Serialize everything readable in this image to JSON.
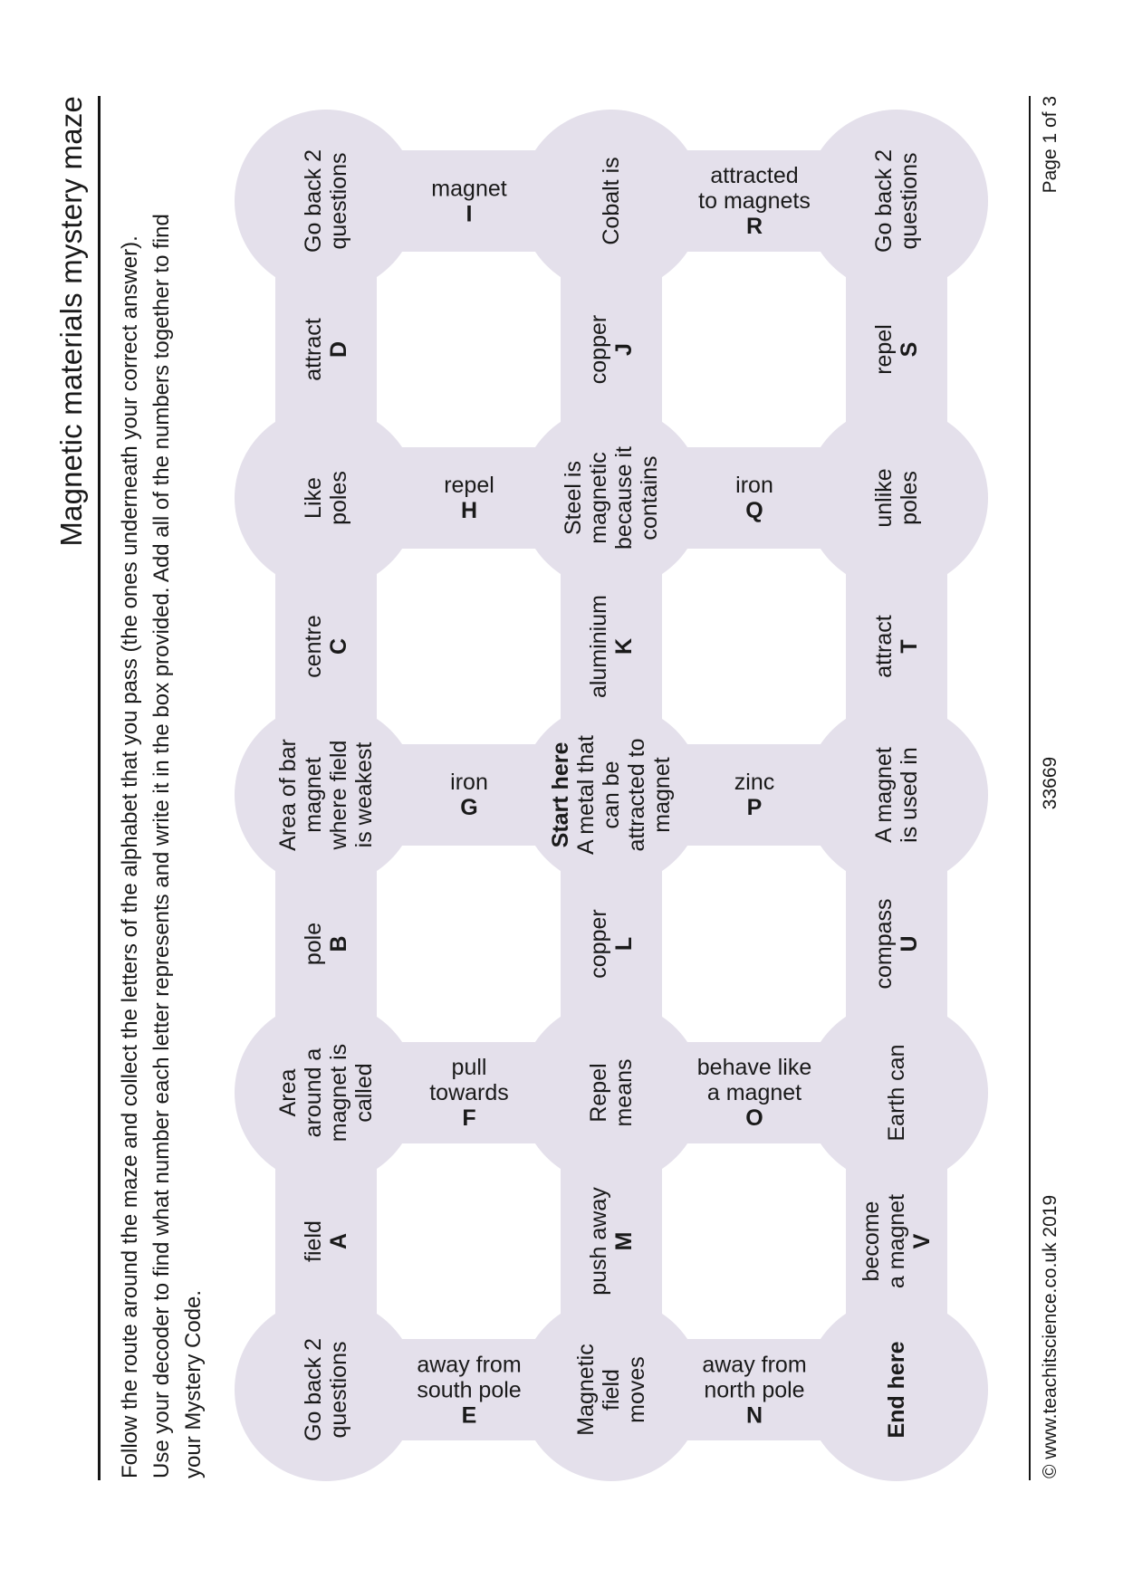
{
  "document": {
    "title": "Magnetic materials mystery maze",
    "instruction_lines": [
      "Follow the route around the maze and collect the letters of the alphabet that you pass (the ones underneath your correct answer).",
      "Use your decoder to find what number each letter represents and write it in the box provided. Add all of the numbers together to find",
      "your Mystery Code."
    ],
    "footer": {
      "copyright": "© www.teachitscience.co.uk 2019",
      "document_id": "33669",
      "page_label": "Page 1 of 3"
    }
  },
  "colors": {
    "bubble": "#e4e0eb",
    "ink": "#1a1a1a",
    "rule": "#161616"
  },
  "maze": {
    "circles": [
      {
        "row": 0,
        "col": 0,
        "lines": [
          "Go back 2",
          "questions"
        ]
      },
      {
        "row": 0,
        "col": 1,
        "lines": [
          "Area",
          "around a",
          "magnet is",
          "called"
        ]
      },
      {
        "row": 0,
        "col": 2,
        "lines": [
          "Area of bar",
          "magnet",
          "where field",
          "is weakest"
        ]
      },
      {
        "row": 0,
        "col": 3,
        "lines": [
          "Like",
          "poles"
        ]
      },
      {
        "row": 0,
        "col": 4,
        "lines": [
          "Go back 2",
          "questions"
        ]
      },
      {
        "row": 1,
        "col": 0,
        "lines": [
          "Magnetic",
          "field",
          "moves"
        ]
      },
      {
        "row": 1,
        "col": 1,
        "lines": [
          "Repel",
          "means"
        ]
      },
      {
        "row": 1,
        "col": 2,
        "lines": [
          "Start here",
          "A metal that",
          "can be",
          "attracted to",
          "magnet"
        ],
        "bold_first": true
      },
      {
        "row": 1,
        "col": 3,
        "lines": [
          "Steel is",
          "magnetic",
          "because it",
          "contains"
        ]
      },
      {
        "row": 1,
        "col": 4,
        "lines": [
          "Cobalt is"
        ]
      },
      {
        "row": 2,
        "col": 0,
        "lines": [
          "End here"
        ],
        "bold_first": true
      },
      {
        "row": 2,
        "col": 1,
        "lines": [
          "Earth can"
        ]
      },
      {
        "row": 2,
        "col": 2,
        "lines": [
          "A magnet",
          "is used in"
        ]
      },
      {
        "row": 2,
        "col": 3,
        "lines": [
          "unlike",
          "poles"
        ]
      },
      {
        "row": 2,
        "col": 4,
        "lines": [
          "Go back 2",
          "questions"
        ]
      }
    ],
    "horizontal_connectors": [
      {
        "row": 0,
        "cols": [
          0,
          1
        ],
        "answer_lines": [
          "field"
        ],
        "letter": "A"
      },
      {
        "row": 0,
        "cols": [
          1,
          2
        ],
        "answer_lines": [
          "pole"
        ],
        "letter": "B"
      },
      {
        "row": 0,
        "cols": [
          2,
          3
        ],
        "answer_lines": [
          "centre"
        ],
        "letter": "C"
      },
      {
        "row": 0,
        "cols": [
          3,
          4
        ],
        "answer_lines": [
          "attract"
        ],
        "letter": "D"
      },
      {
        "row": 1,
        "cols": [
          0,
          1
        ],
        "answer_lines": [
          "push away"
        ],
        "letter": "M"
      },
      {
        "row": 1,
        "cols": [
          1,
          2
        ],
        "answer_lines": [
          "copper"
        ],
        "letter": "L"
      },
      {
        "row": 1,
        "cols": [
          2,
          3
        ],
        "answer_lines": [
          "aluminium"
        ],
        "letter": "K"
      },
      {
        "row": 1,
        "cols": [
          3,
          4
        ],
        "answer_lines": [
          "copper"
        ],
        "letter": "J"
      },
      {
        "row": 2,
        "cols": [
          0,
          1
        ],
        "answer_lines": [
          "become",
          "a magnet"
        ],
        "letter": "V"
      },
      {
        "row": 2,
        "cols": [
          1,
          2
        ],
        "answer_lines": [
          "compass"
        ],
        "letter": "U"
      },
      {
        "row": 2,
        "cols": [
          2,
          3
        ],
        "answer_lines": [
          "attract"
        ],
        "letter": "T"
      },
      {
        "row": 2,
        "cols": [
          3,
          4
        ],
        "answer_lines": [
          "repel"
        ],
        "letter": "S"
      }
    ],
    "vertical_connectors": [
      {
        "col": 0,
        "rows": [
          0,
          1
        ],
        "answer_lines": [
          "away from",
          "south pole"
        ],
        "letter": "E"
      },
      {
        "col": 1,
        "rows": [
          0,
          1
        ],
        "answer_lines": [
          "pull",
          "towards"
        ],
        "letter": "F"
      },
      {
        "col": 2,
        "rows": [
          0,
          1
        ],
        "answer_lines": [
          "iron"
        ],
        "letter": "G"
      },
      {
        "col": 3,
        "rows": [
          0,
          1
        ],
        "answer_lines": [
          "repel"
        ],
        "letter": "H"
      },
      {
        "col": 4,
        "rows": [
          0,
          1
        ],
        "answer_lines": [
          "magnet"
        ],
        "letter": "I"
      },
      {
        "col": 0,
        "rows": [
          1,
          2
        ],
        "answer_lines": [
          "away from",
          "north pole"
        ],
        "letter": "N"
      },
      {
        "col": 1,
        "rows": [
          1,
          2
        ],
        "answer_lines": [
          "behave like",
          "a magnet"
        ],
        "letter": "O"
      },
      {
        "col": 2,
        "rows": [
          1,
          2
        ],
        "answer_lines": [
          "zinc"
        ],
        "letter": "P"
      },
      {
        "col": 3,
        "rows": [
          1,
          2
        ],
        "answer_lines": [
          "iron"
        ],
        "letter": "Q"
      },
      {
        "col": 4,
        "rows": [
          1,
          2
        ],
        "answer_lines": [
          "attracted",
          "to magnets"
        ],
        "letter": "R"
      }
    ]
  }
}
